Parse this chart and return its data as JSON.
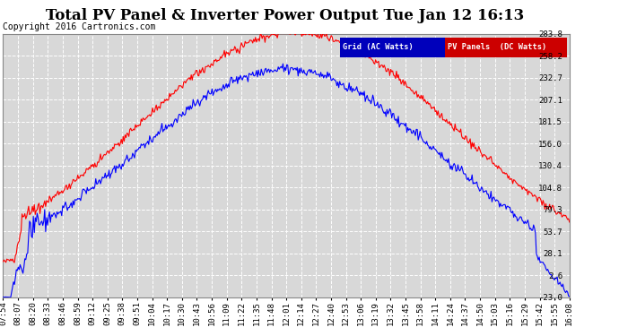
{
  "title": "Total PV Panel & Inverter Power Output Tue Jan 12 16:13",
  "copyright": "Copyright 2016 Cartronics.com",
  "legend_grid": "Grid (AC Watts)",
  "legend_pv": "PV Panels  (DC Watts)",
  "ylabel_right": [
    "283.8",
    "258.2",
    "232.7",
    "207.1",
    "181.5",
    "156.0",
    "130.4",
    "104.8",
    "79.3",
    "53.7",
    "28.1",
    "2.6",
    "-23.0"
  ],
  "ymin": -23.0,
  "ymax": 283.8,
  "background_color": "#ffffff",
  "plot_bg_color": "#d8d8d8",
  "grid_color": "#ffffff",
  "title_fontsize": 12,
  "copyright_fontsize": 7,
  "tick_fontsize": 6.5,
  "blue_color": "#0000ff",
  "red_color": "#ff0000",
  "legend_bg_blue": "#0000bb",
  "legend_bg_red": "#cc0000",
  "x_tick_labels": [
    "07:54",
    "08:07",
    "08:20",
    "08:33",
    "08:46",
    "08:59",
    "09:12",
    "09:25",
    "09:38",
    "09:51",
    "10:04",
    "10:17",
    "10:30",
    "10:43",
    "10:56",
    "11:09",
    "11:22",
    "11:35",
    "11:48",
    "12:01",
    "12:14",
    "12:27",
    "12:40",
    "12:53",
    "13:06",
    "13:19",
    "13:32",
    "13:45",
    "13:58",
    "14:11",
    "14:24",
    "14:37",
    "14:50",
    "15:03",
    "15:16",
    "15:29",
    "15:42",
    "15:55",
    "16:08"
  ]
}
